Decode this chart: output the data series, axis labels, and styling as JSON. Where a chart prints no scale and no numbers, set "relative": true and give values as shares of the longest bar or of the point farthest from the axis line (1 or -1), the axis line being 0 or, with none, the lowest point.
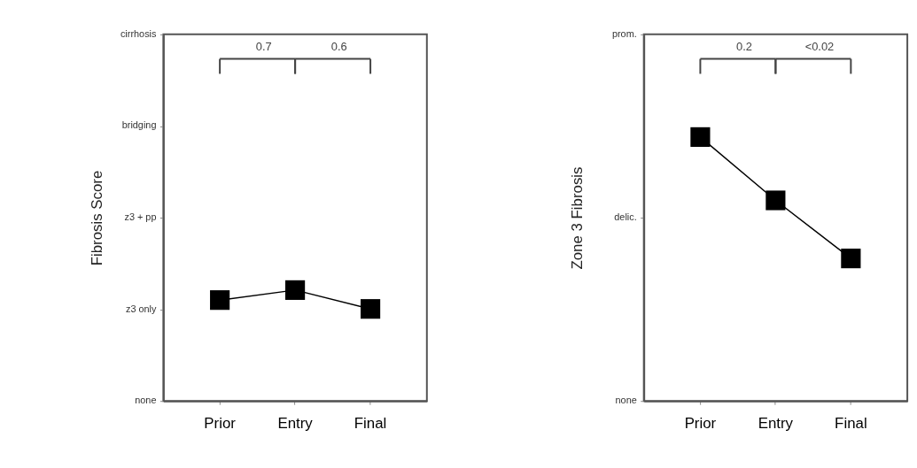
{
  "chart_data": [
    {
      "type": "line",
      "ylabel": "Fibrosis Score",
      "categories": [
        "Prior",
        "Entry",
        "Final"
      ],
      "marker": "square",
      "relative": true,
      "series": [
        {
          "color": "#000000",
          "values": [
            0.91,
            1,
            0.83
          ]
        }
      ],
      "annotations": [
        "none",
        "z3 only",
        "z3 + pp",
        "bridging",
        "cirrhosis",
        "0.7",
        "0.6"
      ]
    },
    {
      "type": "line",
      "ylabel": "Zone 3 Fibrosis",
      "categories": [
        "Prior",
        "Entry",
        "Final"
      ],
      "marker": "square",
      "relative": true,
      "series": [
        {
          "color": "#000000",
          "values": [
            1,
            0.76,
            0.54
          ]
        }
      ],
      "annotations": [
        "none",
        "delic.",
        "prom.",
        "0.2",
        "<0.02"
      ]
    }
  ]
}
